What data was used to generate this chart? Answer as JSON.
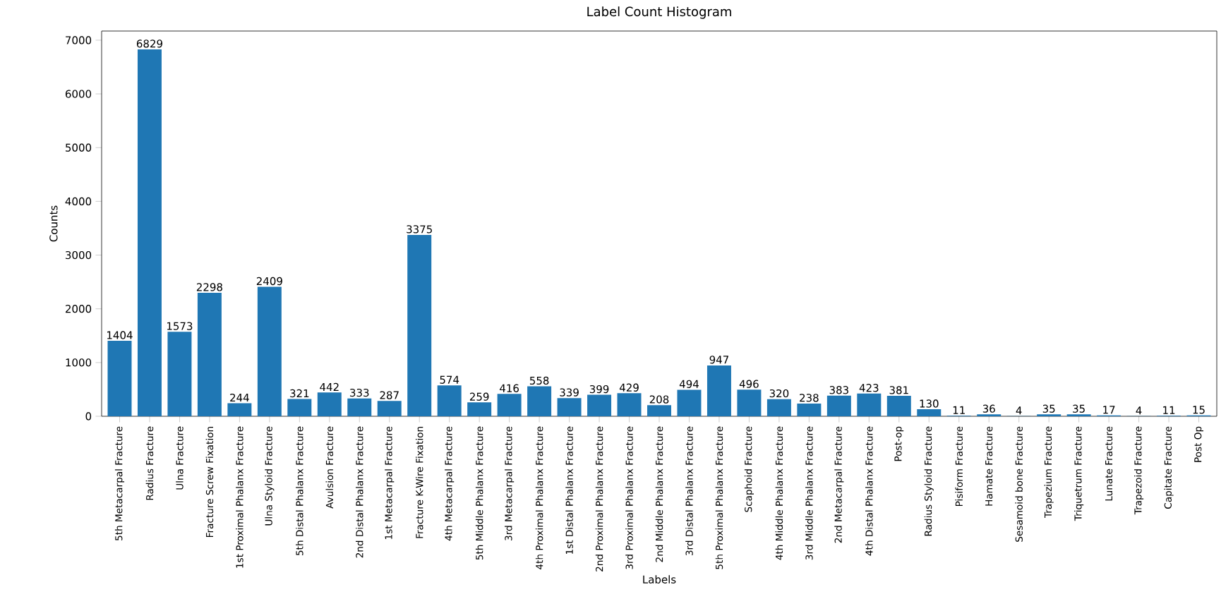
{
  "chart_data": {
    "type": "bar",
    "title": "Label Count Histogram",
    "xlabel": "Labels",
    "ylabel": "Counts",
    "categories": [
      "5th Metacarpal Fracture",
      "Radius Fracture",
      "Ulna Fracture",
      "Fracture Screw Fixation",
      "1st Proximal Phalanx Fracture",
      "Ulna Styloid Fracture",
      "5th Distal Phalanx Fracture",
      "Avulsion Fracture",
      "2nd Distal Phalanx Fracture",
      "1st Metacarpal Fracture",
      "Fracture K-Wire Fixation",
      "4th Metacarpal Fracture",
      "5th Middle Phalanx Fracture",
      "3rd Metacarpal Fracture",
      "4th Proximal Phalanx Fracture",
      "1st Distal Phalanx Fracture",
      "2nd Proximal Phalanx Fracture",
      "3rd Proximal Phalanx Fracture",
      "2nd Middle Phalanx Fracture",
      "3rd Distal Phalanx Fracture",
      "5th Proximal Phalanx Fracture",
      "Scaphoid Fracture",
      "4th Middle Phalanx Fracture",
      "3rd Middle Phalanx Fracture",
      "2nd Metacarpal Fracture",
      "4th Distal Phalanx Fracture",
      "Post-op",
      "Radius Styloid Fracture",
      "Pisiform Fracture",
      "Hamate Fracture",
      "Sesamoid bone Fracture",
      "Trapezium Fracture",
      "Triquetrum Fracture",
      "Lunate Fracture",
      "Trapezoid Fracture",
      "Capitate Fracture",
      "Post Op"
    ],
    "values": [
      1404,
      6829,
      1573,
      2298,
      244,
      2409,
      321,
      442,
      333,
      287,
      3375,
      574,
      259,
      416,
      558,
      339,
      399,
      429,
      208,
      494,
      947,
      496,
      320,
      238,
      383,
      423,
      381,
      130,
      11,
      36,
      4,
      35,
      35,
      17,
      4,
      11,
      15
    ],
    "color": "#1f77b4",
    "data_labels": true,
    "ylim": [
      0,
      7170
    ],
    "yticks": [
      0,
      1000,
      2000,
      3000,
      4000,
      5000,
      6000,
      7000
    ]
  }
}
